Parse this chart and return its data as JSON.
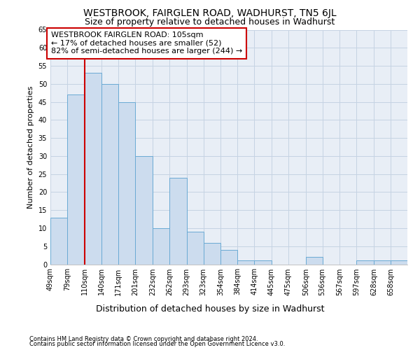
{
  "title": "WESTBROOK, FAIRGLEN ROAD, WADHURST, TN5 6JL",
  "subtitle": "Size of property relative to detached houses in Wadhurst",
  "xlabel": "Distribution of detached houses by size in Wadhurst",
  "ylabel": "Number of detached properties",
  "footer1": "Contains HM Land Registry data © Crown copyright and database right 2024.",
  "footer2": "Contains public sector information licensed under the Open Government Licence v3.0.",
  "bin_labels": [
    "49sqm",
    "79sqm",
    "110sqm",
    "140sqm",
    "171sqm",
    "201sqm",
    "232sqm",
    "262sqm",
    "293sqm",
    "323sqm",
    "354sqm",
    "384sqm",
    "414sqm",
    "445sqm",
    "475sqm",
    "506sqm",
    "536sqm",
    "567sqm",
    "597sqm",
    "628sqm",
    "658sqm"
  ],
  "bin_edges": [
    49,
    79,
    110,
    140,
    171,
    201,
    232,
    262,
    293,
    323,
    354,
    384,
    414,
    445,
    475,
    506,
    536,
    567,
    597,
    628,
    658
  ],
  "bin_width": 31,
  "values": [
    13,
    47,
    53,
    50,
    45,
    30,
    10,
    24,
    9,
    6,
    4,
    1,
    1,
    0,
    0,
    2,
    0,
    0,
    1,
    1,
    1
  ],
  "bar_color": "#ccdcee",
  "bar_edge_color": "#6aaad4",
  "vline_x_index": 2,
  "annotation_title": "WESTBROOK FAIRGLEN ROAD: 105sqm",
  "annotation_line1": "← 17% of detached houses are smaller (52)",
  "annotation_line2": "82% of semi-detached houses are larger (244) →",
  "annotation_box_facecolor": "#ffffff",
  "annotation_box_edgecolor": "#cc0000",
  "vline_color": "#cc0000",
  "ylim": [
    0,
    65
  ],
  "yticks": [
    0,
    5,
    10,
    15,
    20,
    25,
    30,
    35,
    40,
    45,
    50,
    55,
    60,
    65
  ],
  "grid_color": "#c5d3e3",
  "plot_bg_color": "#e8eef6",
  "fig_bg_color": "#ffffff",
  "title_fontsize": 10,
  "subtitle_fontsize": 9,
  "ylabel_fontsize": 8,
  "xlabel_fontsize": 9,
  "annotation_fontsize": 8,
  "tick_fontsize": 7,
  "footer_fontsize": 6
}
